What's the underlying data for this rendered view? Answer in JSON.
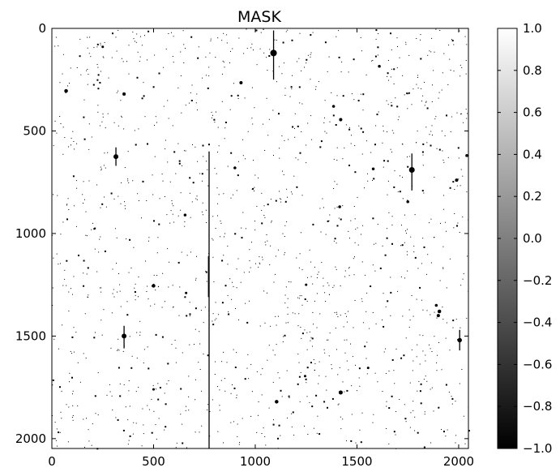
{
  "chart_data": {
    "type": "heatmap",
    "title": "MASK",
    "xlabel": "",
    "ylabel": "",
    "xlim": [
      0,
      2048
    ],
    "ylim": [
      2048,
      0
    ],
    "xticks": [
      "0",
      "500",
      "1000",
      "1500",
      "2000"
    ],
    "yticks": [
      "0",
      "500",
      "1000",
      "1500",
      "2000"
    ],
    "colormap": "gray",
    "colorbar": {
      "range": [
        -1.0,
        1.0
      ],
      "ticks": [
        "1.0",
        "0.8",
        "0.6",
        "0.4",
        "0.2",
        "0.0",
        "−0.2",
        "−0.4",
        "−0.6",
        "−0.8",
        "−1.0"
      ],
      "tick_values": [
        1.0,
        0.8,
        0.6,
        0.4,
        0.2,
        0.0,
        -0.2,
        -0.4,
        -0.6,
        -0.8,
        -1.0
      ]
    },
    "background_value": 1.0,
    "mask_value": -1.0,
    "masked_lines": [
      {
        "x": 773,
        "y0": 600,
        "y1": 2048
      },
      {
        "x": 770,
        "y0": 1110,
        "y1": 1310
      },
      {
        "x": 1090,
        "y0": 10,
        "y1": 250
      },
      {
        "x": 1770,
        "y0": 610,
        "y1": 790
      },
      {
        "x": 315,
        "y0": 580,
        "y1": 670
      },
      {
        "x": 355,
        "y0": 1450,
        "y1": 1560
      },
      {
        "x": 2005,
        "y0": 1470,
        "y1": 1570
      }
    ],
    "masked_blobs": [
      {
        "x": 1090,
        "y": 120,
        "r": 16
      },
      {
        "x": 1770,
        "y": 690,
        "r": 14
      },
      {
        "x": 315,
        "y": 625,
        "r": 12
      },
      {
        "x": 355,
        "y": 1500,
        "r": 12
      },
      {
        "x": 2005,
        "y": 1520,
        "r": 11
      },
      {
        "x": 1420,
        "y": 1775,
        "r": 10
      },
      {
        "x": 1105,
        "y": 1820,
        "r": 9
      },
      {
        "x": 1905,
        "y": 1380,
        "r": 9
      },
      {
        "x": 1900,
        "y": 1400,
        "r": 8
      },
      {
        "x": 500,
        "y": 1255,
        "r": 9
      },
      {
        "x": 70,
        "y": 305,
        "r": 9
      },
      {
        "x": 355,
        "y": 320,
        "r": 8
      },
      {
        "x": 930,
        "y": 265,
        "r": 8
      },
      {
        "x": 1420,
        "y": 445,
        "r": 8
      },
      {
        "x": 1990,
        "y": 740,
        "r": 8
      },
      {
        "x": 1750,
        "y": 845,
        "r": 7
      },
      {
        "x": 900,
        "y": 680,
        "r": 7
      },
      {
        "x": 1385,
        "y": 380,
        "r": 7
      },
      {
        "x": 1610,
        "y": 185,
        "r": 7
      },
      {
        "x": 655,
        "y": 910,
        "r": 7
      },
      {
        "x": 1580,
        "y": 685,
        "r": 7
      },
      {
        "x": 1415,
        "y": 870,
        "r": 7
      },
      {
        "x": 1890,
        "y": 1350,
        "r": 7
      },
      {
        "x": 1245,
        "y": 1695,
        "r": 6
      },
      {
        "x": 250,
        "y": 90,
        "r": 6
      },
      {
        "x": 2040,
        "y": 620,
        "r": 7
      },
      {
        "x": 500,
        "y": 1760,
        "r": 6
      },
      {
        "x": 1555,
        "y": 1655,
        "r": 6
      },
      {
        "x": 660,
        "y": 1290,
        "r": 6
      },
      {
        "x": 1250,
        "y": 1250,
        "r": 6
      }
    ]
  }
}
